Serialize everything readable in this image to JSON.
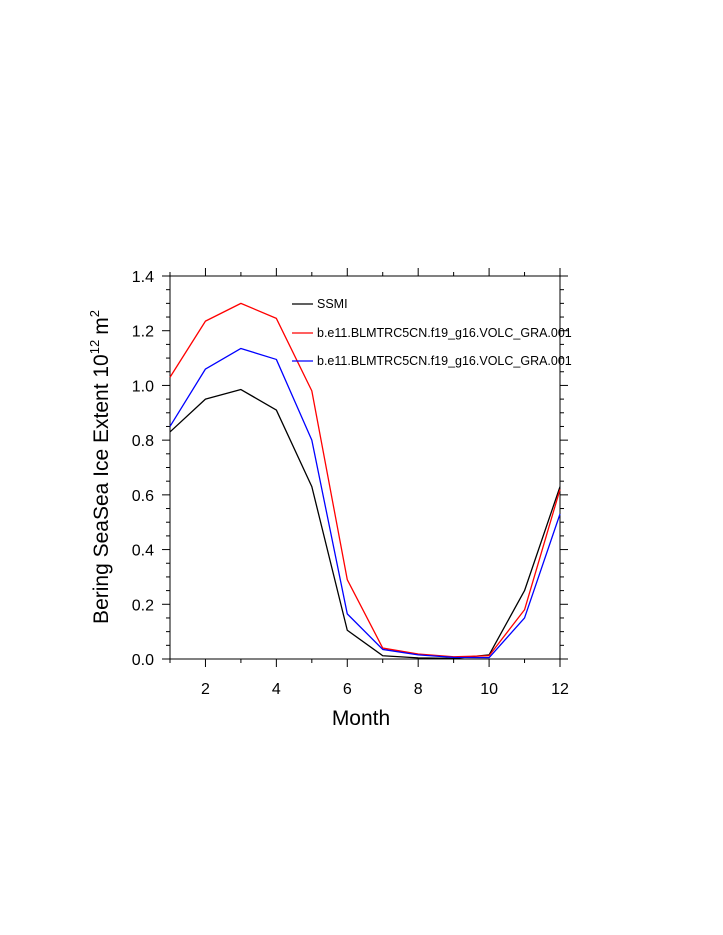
{
  "chart_data": {
    "type": "line",
    "title": "",
    "xlabel": "Month",
    "ylabel": "Bering SeaSea Ice Extent 10",
    "ylabel_exponent": "12",
    "ylabel_unit": "m",
    "ylabel_unit_exponent": "2",
    "xlim": [
      1,
      12
    ],
    "ylim": [
      0.0,
      1.4
    ],
    "xticks": [
      2,
      4,
      6,
      8,
      10,
      12
    ],
    "yticks": [
      0.0,
      0.2,
      0.4,
      0.6,
      0.8,
      1.0,
      1.2,
      1.4
    ],
    "ytick_labels": [
      "0.0",
      "0.2",
      "0.4",
      "0.6",
      "0.8",
      "1.0",
      "1.2",
      "1.4"
    ],
    "grid": false,
    "legend_position": "top-right",
    "x": [
      1,
      2,
      3,
      4,
      5,
      6,
      7,
      8,
      9,
      10,
      11,
      12
    ],
    "series": [
      {
        "name": "SSMI",
        "color": "#000000",
        "values": [
          0.83,
          0.95,
          0.985,
          0.91,
          0.63,
          0.105,
          0.012,
          0.004,
          0.002,
          0.015,
          0.25,
          0.63
        ]
      },
      {
        "name": "b.e11.BLMTRC5CN.f19_g16.VOLC_GRA.001",
        "color": "#ff0000",
        "values": [
          1.03,
          1.235,
          1.3,
          1.245,
          0.98,
          0.29,
          0.04,
          0.018,
          0.008,
          0.012,
          0.18,
          0.62
        ]
      },
      {
        "name": "b.e11.BLMTRC5CN.f19_g16.VOLC_GRA.001",
        "color": "#0000ff",
        "values": [
          0.85,
          1.06,
          1.135,
          1.095,
          0.8,
          0.165,
          0.035,
          0.015,
          0.006,
          0.005,
          0.15,
          0.53
        ]
      }
    ]
  }
}
